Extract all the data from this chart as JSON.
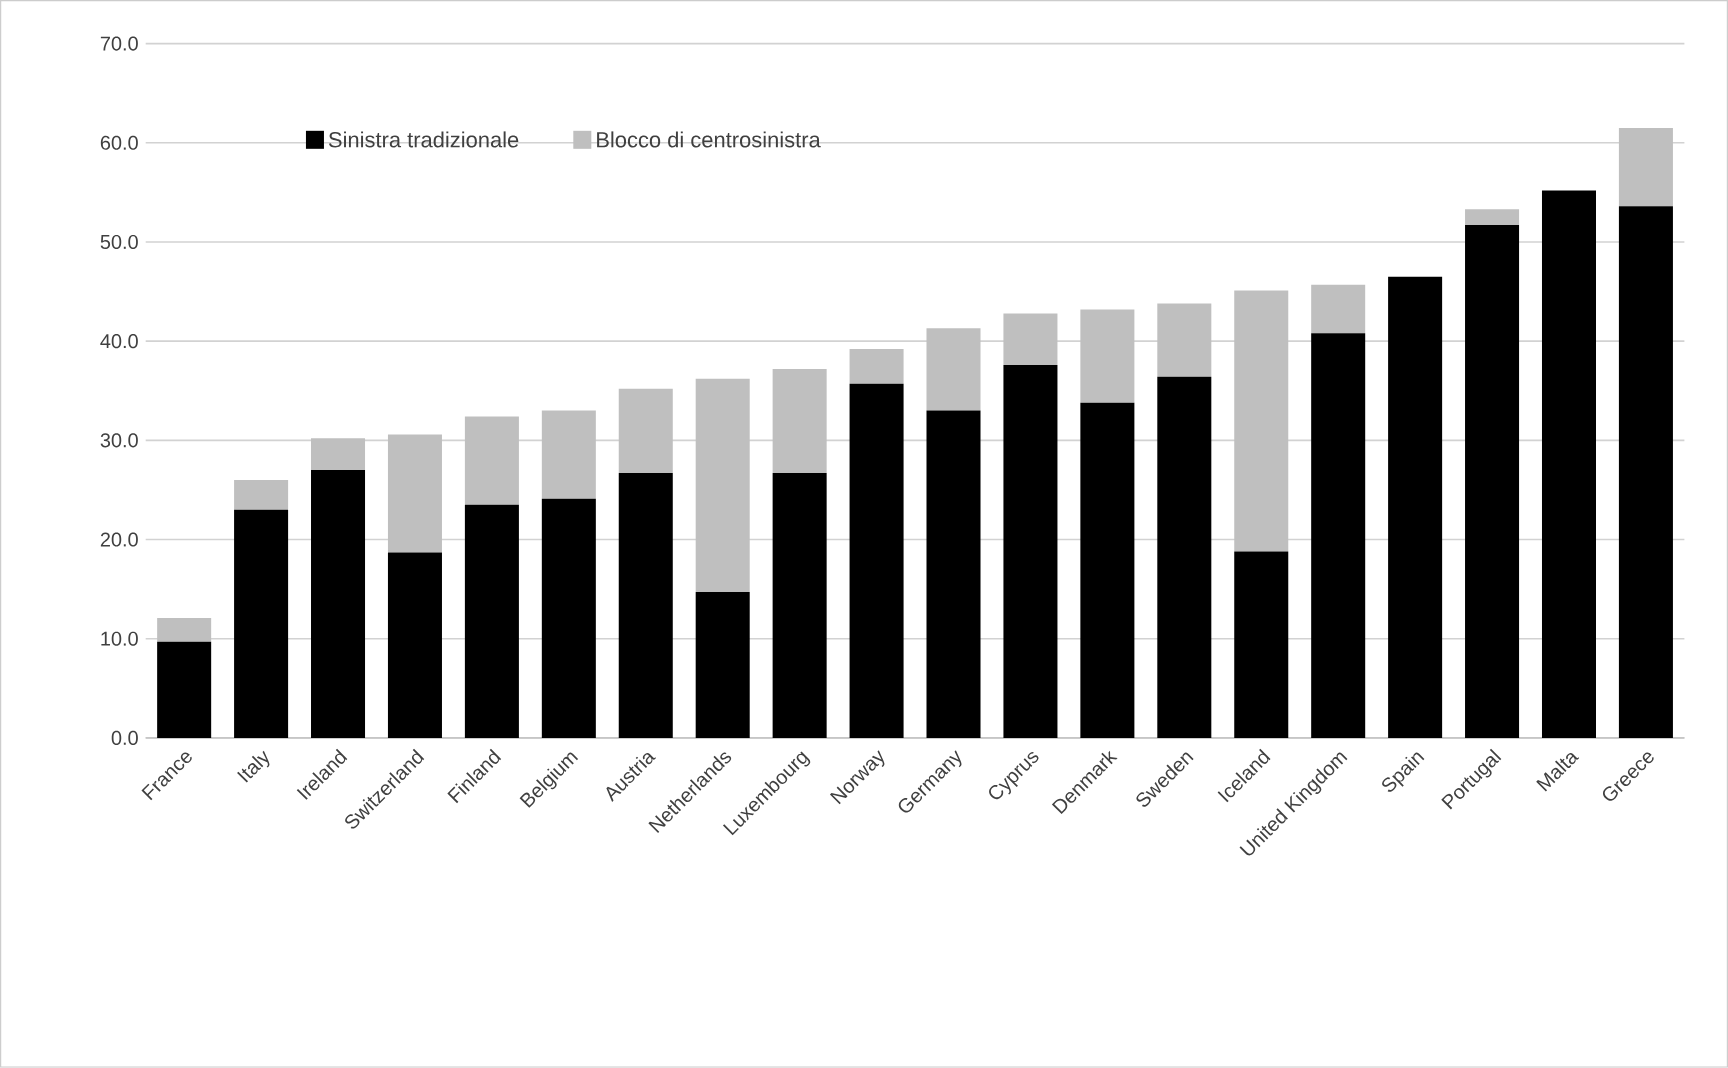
{
  "chart_data": {
    "type": "bar",
    "stacked": true,
    "categories": [
      "France",
      "Italy",
      "Ireland",
      "Switzerland",
      "Finland",
      "Belgium",
      "Austria",
      "Netherlands",
      "Luxembourg",
      "Norway",
      "Germany",
      "Cyprus",
      "Denmark",
      "Sweden",
      "Iceland",
      "United Kingdom",
      "Spain",
      "Portugal",
      "Malta",
      "Greece"
    ],
    "series": [
      {
        "name": "Sinistra tradizionale",
        "color": "#000000",
        "values": [
          9.7,
          23.0,
          27.0,
          18.7,
          23.5,
          24.1,
          26.7,
          14.7,
          26.7,
          35.7,
          33.0,
          37.6,
          33.8,
          36.4,
          18.8,
          40.8,
          46.5,
          51.7,
          55.2,
          53.6
        ]
      },
      {
        "name": "Blocco di centrosinistra",
        "color": "#bfbfbf",
        "values": [
          2.4,
          3.0,
          3.2,
          11.9,
          8.9,
          8.9,
          8.5,
          21.5,
          10.5,
          3.5,
          8.3,
          5.2,
          9.4,
          7.4,
          26.3,
          4.9,
          0,
          1.6,
          0,
          7.9
        ]
      }
    ],
    "ylim": [
      0,
      70
    ],
    "yticks": [
      {
        "value": 0,
        "label": "0.0"
      },
      {
        "value": 10,
        "label": "10.0"
      },
      {
        "value": 20,
        "label": "20.0"
      },
      {
        "value": 30,
        "label": "30.0"
      },
      {
        "value": 40,
        "label": "40.0"
      },
      {
        "value": 50,
        "label": "50.0"
      },
      {
        "value": 60,
        "label": "60.0"
      },
      {
        "value": 70,
        "label": "70.0"
      }
    ],
    "grid": "y",
    "legend": "top left"
  }
}
